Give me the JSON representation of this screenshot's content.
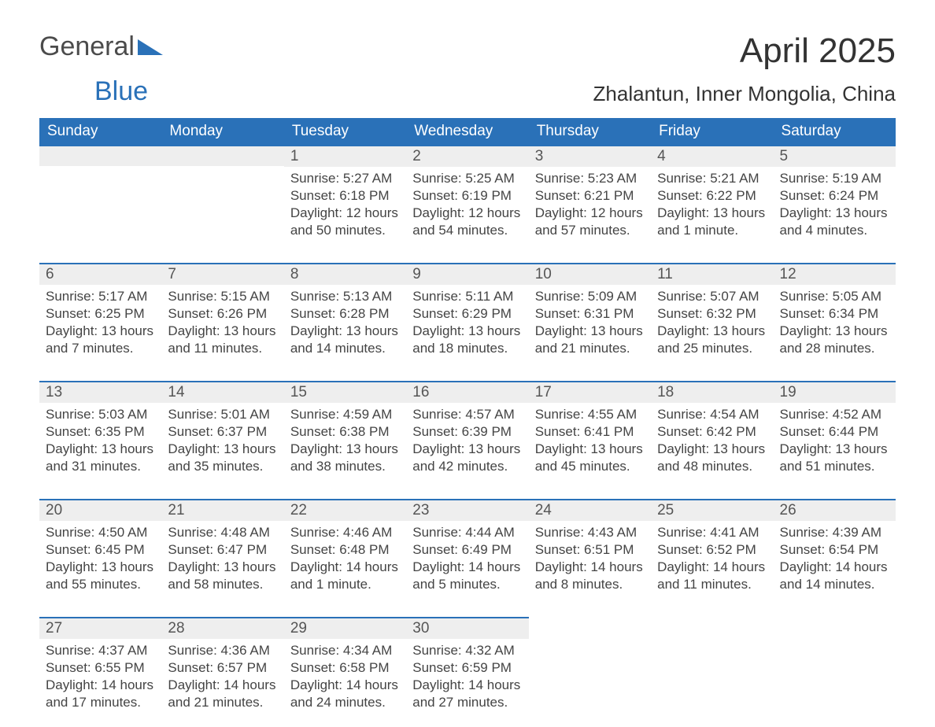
{
  "logo": {
    "text1": "General",
    "text2": "Blue"
  },
  "title": "April 2025",
  "location": "Zhalantun, Inner Mongolia, China",
  "colors": {
    "header_bg": "#2a71b8",
    "header_text": "#ffffff",
    "daynum_bg": "#eeeeee",
    "row_border": "#2a71b8",
    "body_text": "#444444",
    "page_bg": "#ffffff"
  },
  "typography": {
    "title_fontsize": 44,
    "location_fontsize": 26,
    "header_fontsize": 19,
    "daynum_fontsize": 19,
    "cell_fontsize": 17
  },
  "weekdays": [
    "Sunday",
    "Monday",
    "Tuesday",
    "Wednesday",
    "Thursday",
    "Friday",
    "Saturday"
  ],
  "weeks": [
    [
      null,
      null,
      {
        "n": "1",
        "sunrise": "Sunrise: 5:27 AM",
        "sunset": "Sunset: 6:18 PM",
        "day": "Daylight: 12 hours and 50 minutes."
      },
      {
        "n": "2",
        "sunrise": "Sunrise: 5:25 AM",
        "sunset": "Sunset: 6:19 PM",
        "day": "Daylight: 12 hours and 54 minutes."
      },
      {
        "n": "3",
        "sunrise": "Sunrise: 5:23 AM",
        "sunset": "Sunset: 6:21 PM",
        "day": "Daylight: 12 hours and 57 minutes."
      },
      {
        "n": "4",
        "sunrise": "Sunrise: 5:21 AM",
        "sunset": "Sunset: 6:22 PM",
        "day": "Daylight: 13 hours and 1 minute."
      },
      {
        "n": "5",
        "sunrise": "Sunrise: 5:19 AM",
        "sunset": "Sunset: 6:24 PM",
        "day": "Daylight: 13 hours and 4 minutes."
      }
    ],
    [
      {
        "n": "6",
        "sunrise": "Sunrise: 5:17 AM",
        "sunset": "Sunset: 6:25 PM",
        "day": "Daylight: 13 hours and 7 minutes."
      },
      {
        "n": "7",
        "sunrise": "Sunrise: 5:15 AM",
        "sunset": "Sunset: 6:26 PM",
        "day": "Daylight: 13 hours and 11 minutes."
      },
      {
        "n": "8",
        "sunrise": "Sunrise: 5:13 AM",
        "sunset": "Sunset: 6:28 PM",
        "day": "Daylight: 13 hours and 14 minutes."
      },
      {
        "n": "9",
        "sunrise": "Sunrise: 5:11 AM",
        "sunset": "Sunset: 6:29 PM",
        "day": "Daylight: 13 hours and 18 minutes."
      },
      {
        "n": "10",
        "sunrise": "Sunrise: 5:09 AM",
        "sunset": "Sunset: 6:31 PM",
        "day": "Daylight: 13 hours and 21 minutes."
      },
      {
        "n": "11",
        "sunrise": "Sunrise: 5:07 AM",
        "sunset": "Sunset: 6:32 PM",
        "day": "Daylight: 13 hours and 25 minutes."
      },
      {
        "n": "12",
        "sunrise": "Sunrise: 5:05 AM",
        "sunset": "Sunset: 6:34 PM",
        "day": "Daylight: 13 hours and 28 minutes."
      }
    ],
    [
      {
        "n": "13",
        "sunrise": "Sunrise: 5:03 AM",
        "sunset": "Sunset: 6:35 PM",
        "day": "Daylight: 13 hours and 31 minutes."
      },
      {
        "n": "14",
        "sunrise": "Sunrise: 5:01 AM",
        "sunset": "Sunset: 6:37 PM",
        "day": "Daylight: 13 hours and 35 minutes."
      },
      {
        "n": "15",
        "sunrise": "Sunrise: 4:59 AM",
        "sunset": "Sunset: 6:38 PM",
        "day": "Daylight: 13 hours and 38 minutes."
      },
      {
        "n": "16",
        "sunrise": "Sunrise: 4:57 AM",
        "sunset": "Sunset: 6:39 PM",
        "day": "Daylight: 13 hours and 42 minutes."
      },
      {
        "n": "17",
        "sunrise": "Sunrise: 4:55 AM",
        "sunset": "Sunset: 6:41 PM",
        "day": "Daylight: 13 hours and 45 minutes."
      },
      {
        "n": "18",
        "sunrise": "Sunrise: 4:54 AM",
        "sunset": "Sunset: 6:42 PM",
        "day": "Daylight: 13 hours and 48 minutes."
      },
      {
        "n": "19",
        "sunrise": "Sunrise: 4:52 AM",
        "sunset": "Sunset: 6:44 PM",
        "day": "Daylight: 13 hours and 51 minutes."
      }
    ],
    [
      {
        "n": "20",
        "sunrise": "Sunrise: 4:50 AM",
        "sunset": "Sunset: 6:45 PM",
        "day": "Daylight: 13 hours and 55 minutes."
      },
      {
        "n": "21",
        "sunrise": "Sunrise: 4:48 AM",
        "sunset": "Sunset: 6:47 PM",
        "day": "Daylight: 13 hours and 58 minutes."
      },
      {
        "n": "22",
        "sunrise": "Sunrise: 4:46 AM",
        "sunset": "Sunset: 6:48 PM",
        "day": "Daylight: 14 hours and 1 minute."
      },
      {
        "n": "23",
        "sunrise": "Sunrise: 4:44 AM",
        "sunset": "Sunset: 6:49 PM",
        "day": "Daylight: 14 hours and 5 minutes."
      },
      {
        "n": "24",
        "sunrise": "Sunrise: 4:43 AM",
        "sunset": "Sunset: 6:51 PM",
        "day": "Daylight: 14 hours and 8 minutes."
      },
      {
        "n": "25",
        "sunrise": "Sunrise: 4:41 AM",
        "sunset": "Sunset: 6:52 PM",
        "day": "Daylight: 14 hours and 11 minutes."
      },
      {
        "n": "26",
        "sunrise": "Sunrise: 4:39 AM",
        "sunset": "Sunset: 6:54 PM",
        "day": "Daylight: 14 hours and 14 minutes."
      }
    ],
    [
      {
        "n": "27",
        "sunrise": "Sunrise: 4:37 AM",
        "sunset": "Sunset: 6:55 PM",
        "day": "Daylight: 14 hours and 17 minutes."
      },
      {
        "n": "28",
        "sunrise": "Sunrise: 4:36 AM",
        "sunset": "Sunset: 6:57 PM",
        "day": "Daylight: 14 hours and 21 minutes."
      },
      {
        "n": "29",
        "sunrise": "Sunrise: 4:34 AM",
        "sunset": "Sunset: 6:58 PM",
        "day": "Daylight: 14 hours and 24 minutes."
      },
      {
        "n": "30",
        "sunrise": "Sunrise: 4:32 AM",
        "sunset": "Sunset: 6:59 PM",
        "day": "Daylight: 14 hours and 27 minutes."
      },
      null,
      null,
      null
    ]
  ]
}
